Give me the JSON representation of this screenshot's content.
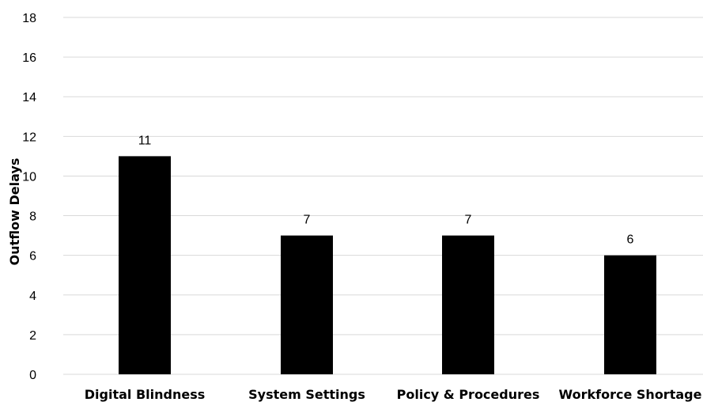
{
  "chart_data": {
    "type": "bar",
    "title": "",
    "xlabel": "",
    "ylabel": "Outflow Delays",
    "categories": [
      "Digital Blindness",
      "System Settings",
      "Policy & Procedures",
      "Workforce Shortage"
    ],
    "values": [
      11,
      7,
      7,
      6
    ],
    "data_labels": [
      "11",
      "7",
      "7",
      "6"
    ],
    "ylim": [
      0,
      18
    ],
    "yticks": [
      0,
      2,
      4,
      6,
      8,
      10,
      12,
      14,
      16,
      18
    ],
    "ytick_labels": [
      "0",
      "2",
      "4",
      "6",
      "8",
      "10",
      "12",
      "14",
      "16",
      "18"
    ],
    "grid": true,
    "legend": "none",
    "colors": {
      "bar": "#000000",
      "grid": "#d9d9d9",
      "background": "#ffffff"
    }
  }
}
